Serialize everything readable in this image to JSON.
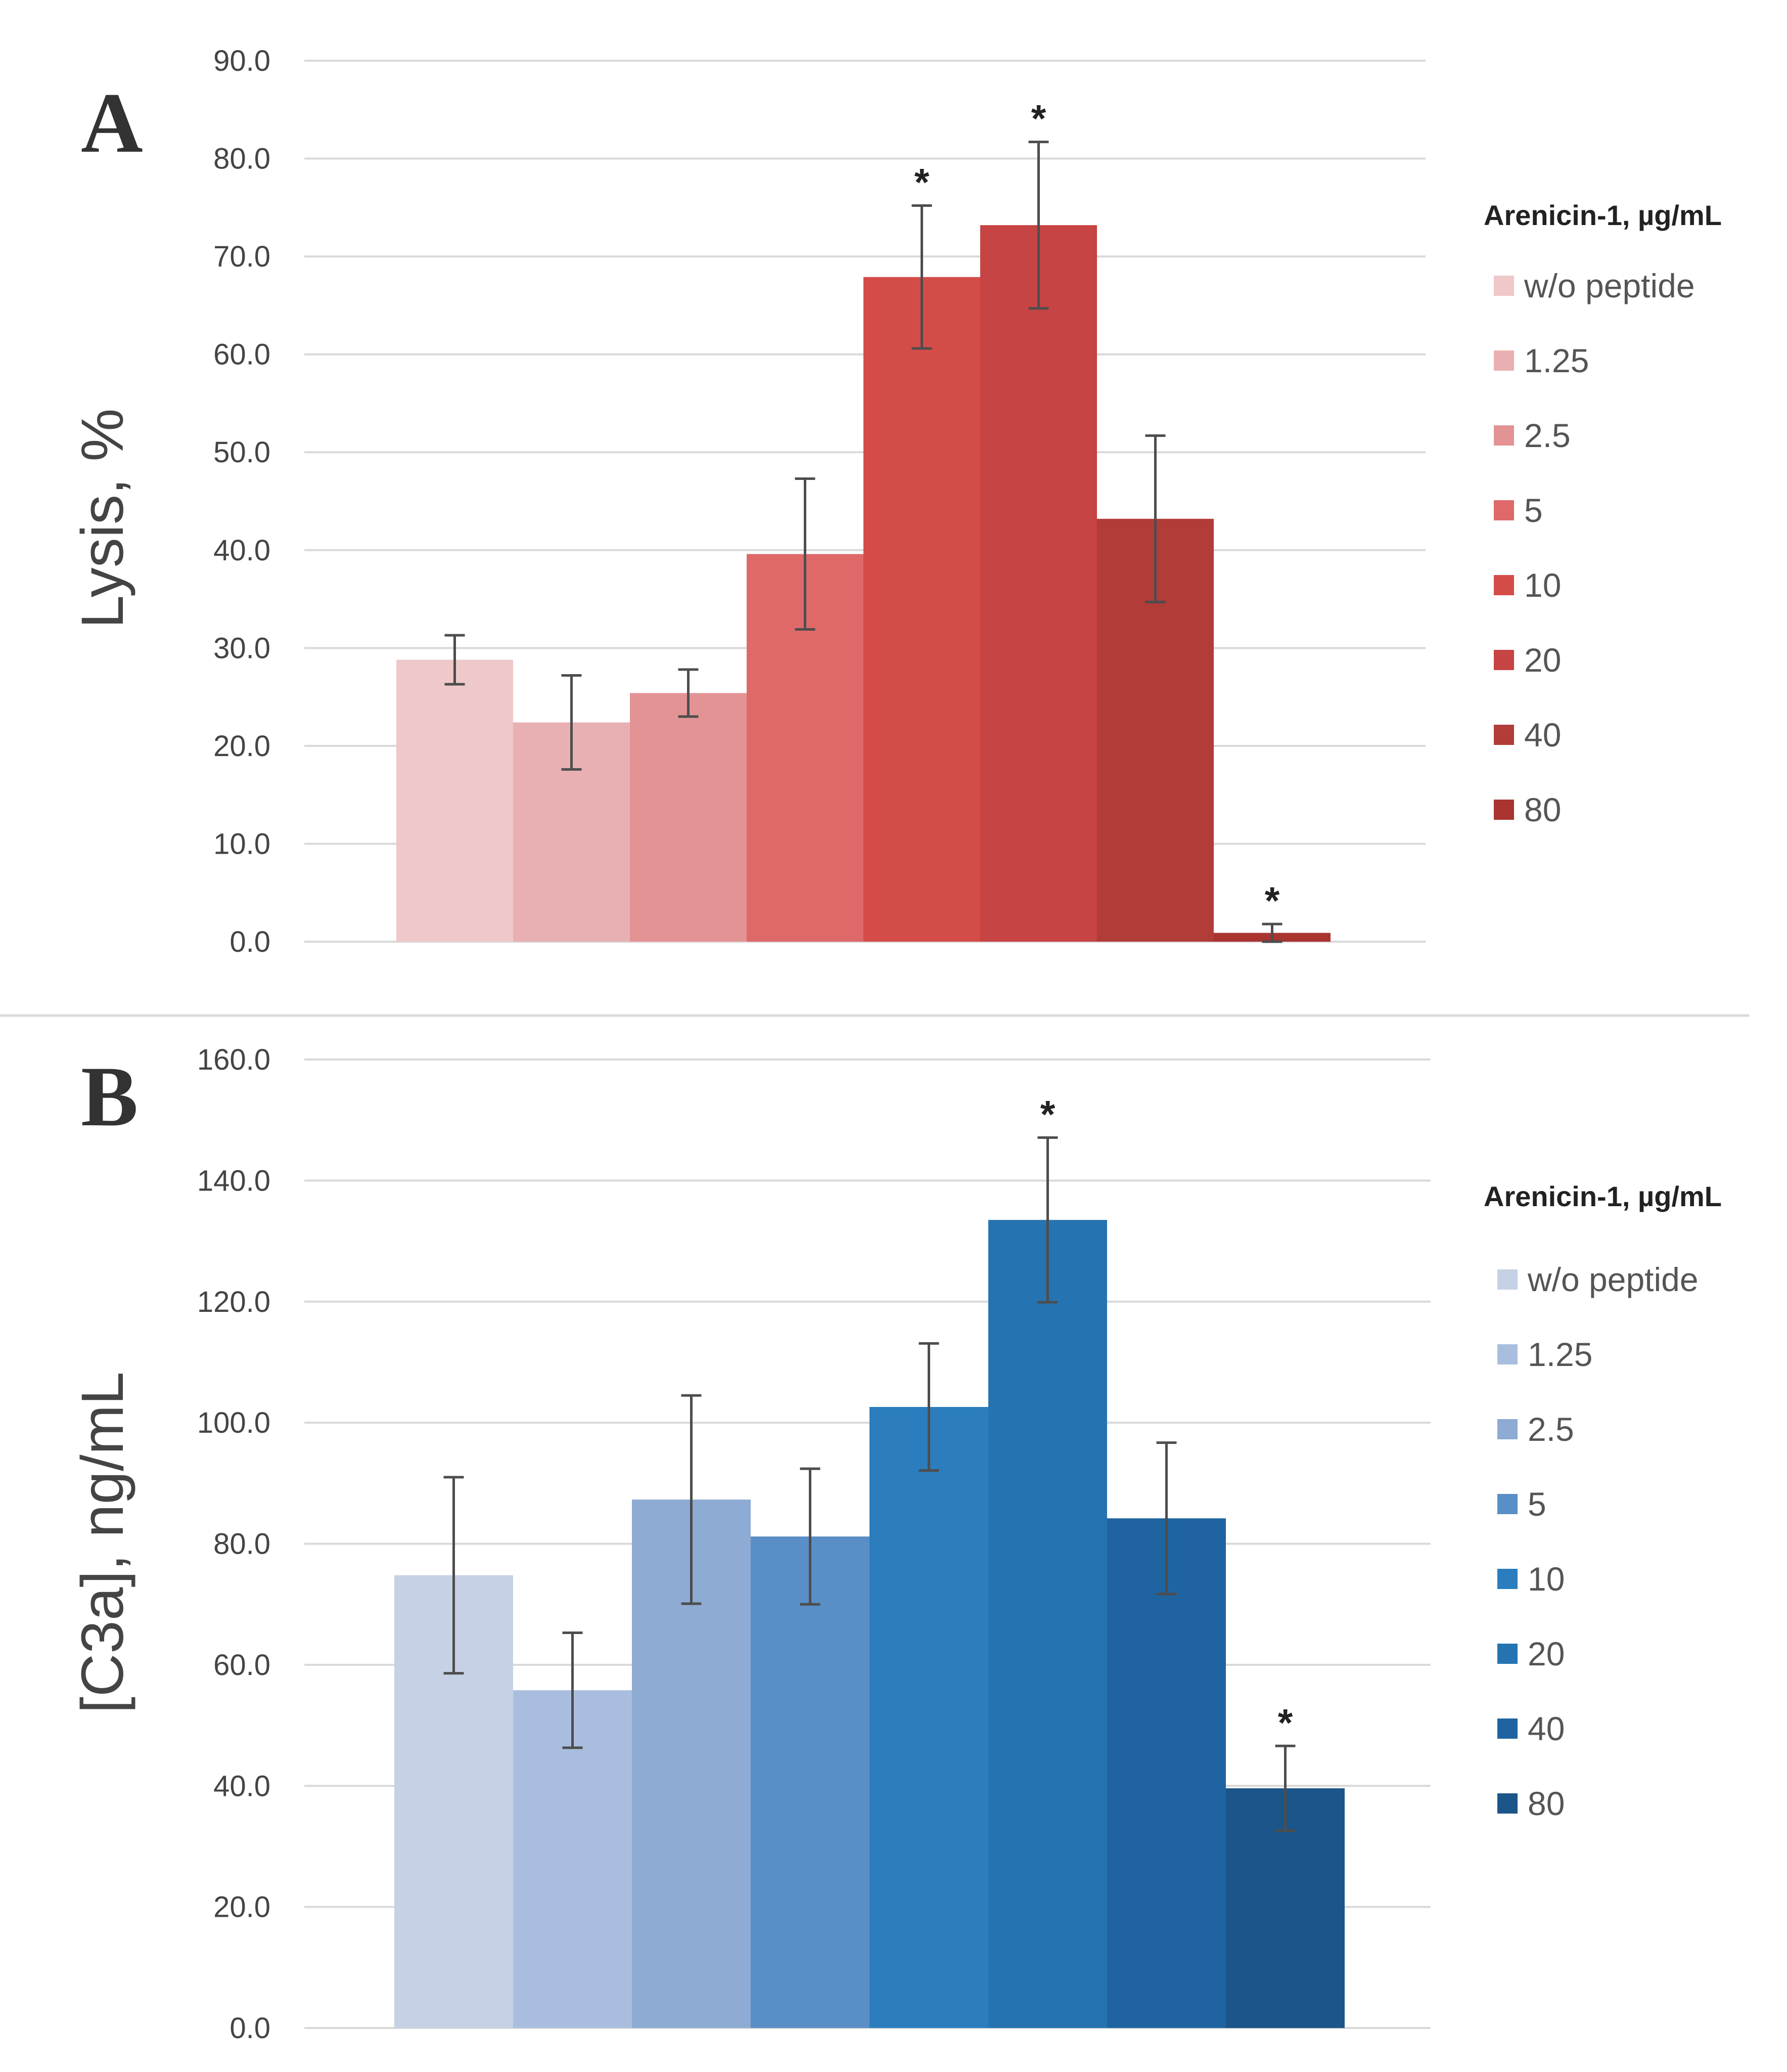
{
  "chart_data": [
    {
      "type": "bar",
      "panel": "A",
      "title": "",
      "xlabel": "",
      "ylabel": "Lysis, %",
      "ylim": [
        0,
        90
      ],
      "yticks": [
        "0.0",
        "10.0",
        "20.0",
        "30.0",
        "40.0",
        "50.0",
        "60.0",
        "70.0",
        "80.0",
        "90.0"
      ],
      "grid": true,
      "legend_title": "Arenicin-1, µg/mL",
      "legend_position": "right",
      "categories": [
        "w/o peptide",
        "1.25",
        "2.5",
        "5",
        "10",
        "20",
        "40",
        "80"
      ],
      "values": [
        28.8,
        22.4,
        25.4,
        39.6,
        67.9,
        73.2,
        43.2,
        0.9
      ],
      "errors": [
        2.5,
        4.8,
        2.4,
        7.7,
        7.3,
        8.5,
        8.5,
        0.9
      ],
      "significance": [
        "",
        "",
        "",
        "",
        "*",
        "*",
        "",
        "*"
      ],
      "colors": [
        "#efc8c9",
        "#e8b0b2",
        "#e39394",
        "#df6969",
        "#d44c48",
        "#c64443",
        "#b13c38",
        "#a93430"
      ]
    },
    {
      "type": "bar",
      "panel": "B",
      "title": "",
      "xlabel": "",
      "ylabel": "[C3a], ng/mL",
      "ylim": [
        0,
        160
      ],
      "yticks": [
        "0.0",
        "20.0",
        "40.0",
        "60.0",
        "80.0",
        "100.0",
        "120.0",
        "140.0",
        "160.0"
      ],
      "grid": true,
      "legend_title": "Arenicin-1, µg/mL",
      "legend_position": "right",
      "categories": [
        "w/o peptide",
        "1.25",
        "2.5",
        "5",
        "10",
        "20",
        "40",
        "80"
      ],
      "values": [
        74.8,
        55.8,
        87.3,
        81.2,
        102.6,
        133.5,
        84.2,
        39.6
      ],
      "errors": [
        16.2,
        9.5,
        17.2,
        11.2,
        10.5,
        13.6,
        12.5,
        7.0
      ],
      "significance": [
        "",
        "",
        "",
        "",
        "",
        "*",
        "",
        "*"
      ],
      "colors": [
        "#c6d1e5",
        "#a9bedf",
        "#8eabd4",
        "#5a8ec6",
        "#2b7dbd",
        "#2574b1",
        "#1f64a0",
        "#1b5589"
      ]
    }
  ]
}
